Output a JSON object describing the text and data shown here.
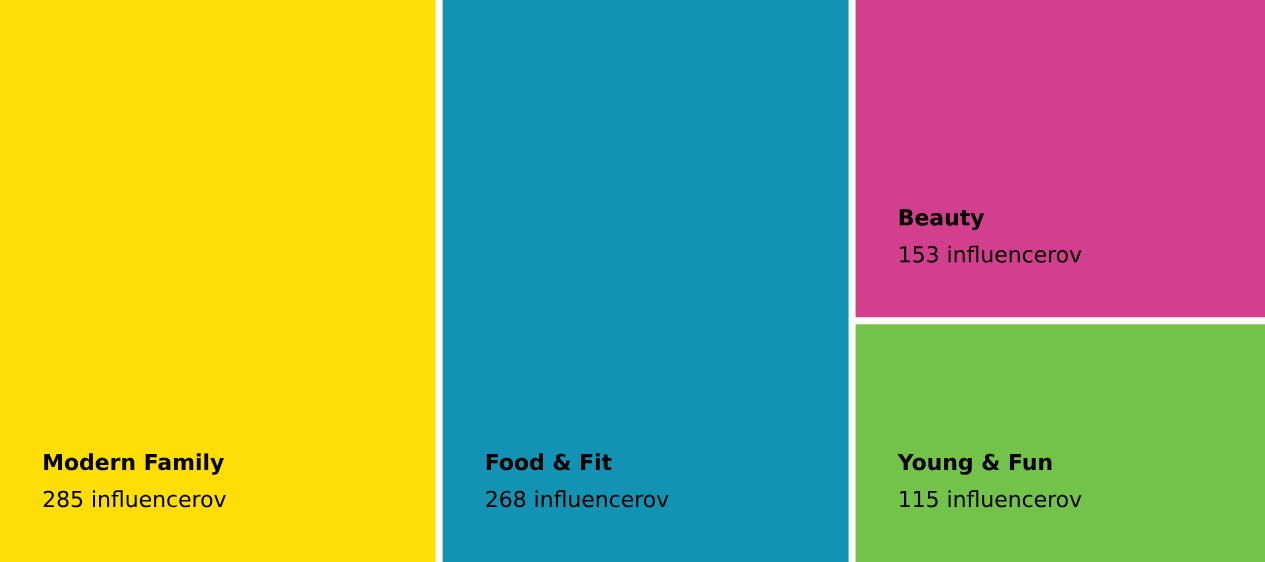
{
  "chart_data": {
    "type": "other",
    "categories": [
      "Modern Family",
      "Food & Fit",
      "Beauty",
      "Young & Fun"
    ],
    "values": [
      285,
      268,
      153,
      115
    ],
    "value_labels": [
      "285 influencerov",
      "268 influencerov",
      "153 influencerov",
      "115 influencerov"
    ],
    "colors": [
      "#ffdd06",
      "#1393b3",
      "#d2408d",
      "#73c24a"
    ]
  }
}
